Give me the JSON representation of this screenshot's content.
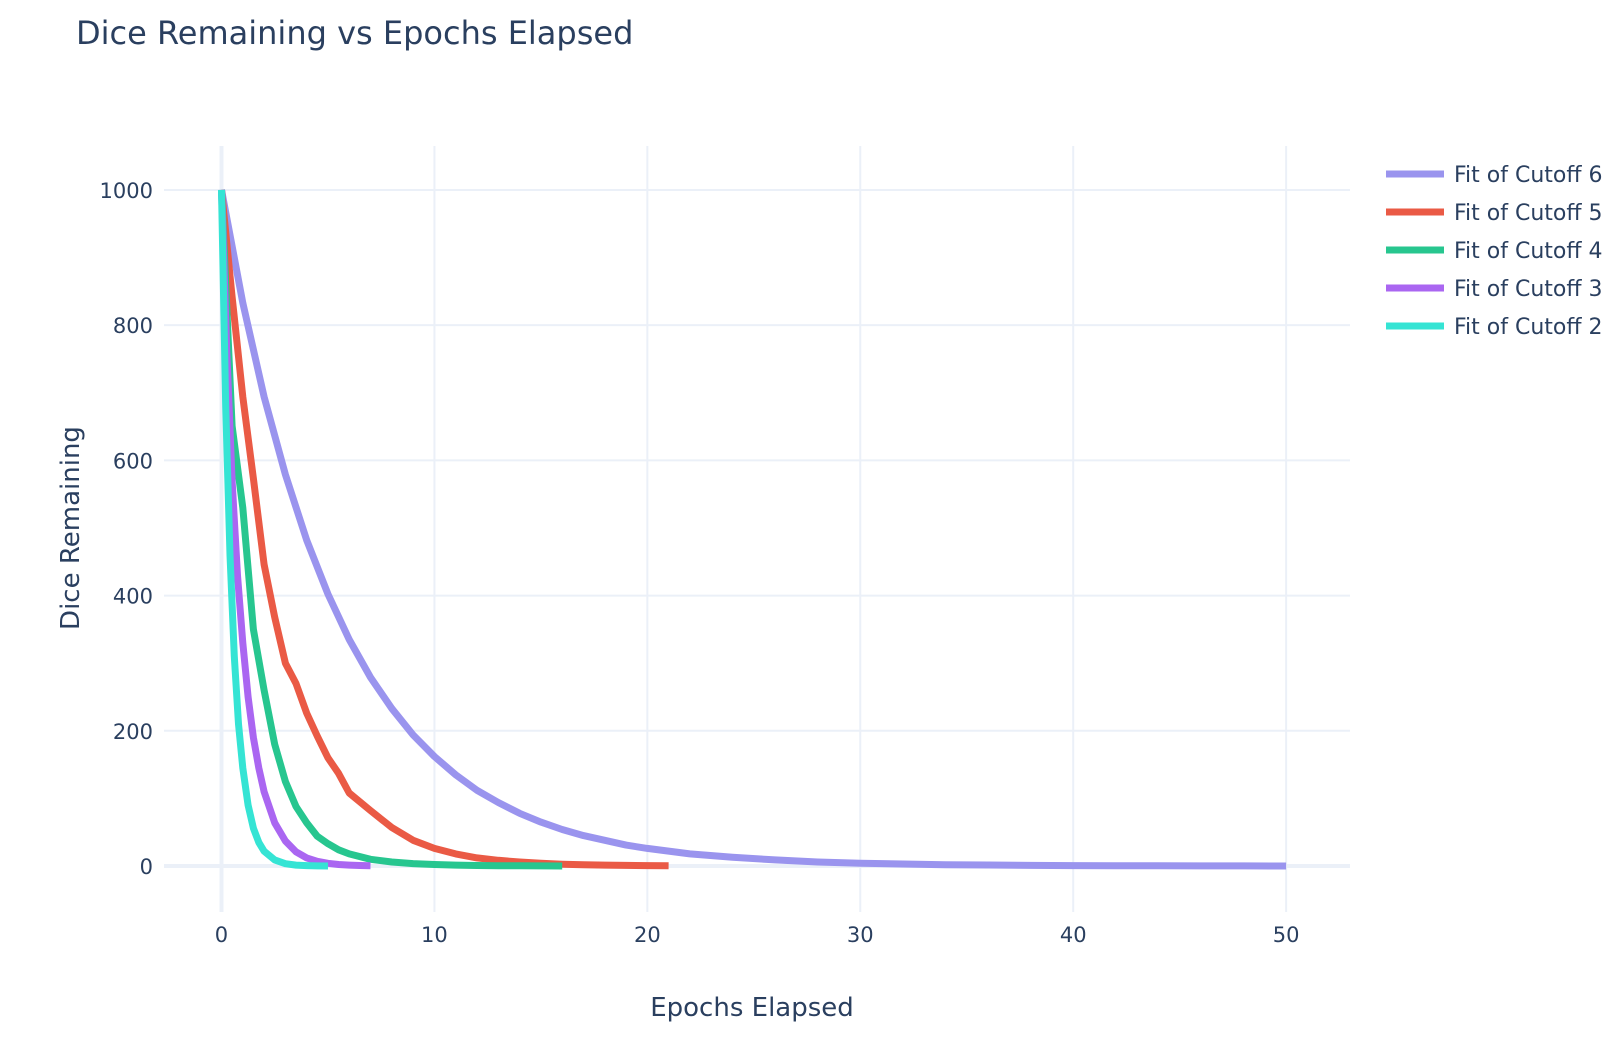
{
  "chart_data": {
    "type": "line",
    "title": "Dice Remaining vs Epochs Elapsed",
    "xlabel": "Epochs Elapsed",
    "ylabel": "Dice Remaining",
    "xlim": [
      -2.7,
      53.0
    ],
    "ylim": [
      -68,
      1065
    ],
    "x_ticks": [
      0,
      10,
      20,
      30,
      40,
      50
    ],
    "y_ticks": [
      0,
      200,
      400,
      600,
      800,
      1000
    ],
    "x_tick_labels": [
      "0",
      "10",
      "20",
      "30",
      "40",
      "50"
    ],
    "y_tick_labels": [
      "0",
      "200",
      "400",
      "600",
      "800",
      "1000"
    ],
    "grid": true,
    "legend_position": "top-right",
    "series": [
      {
        "name": "Fit of Cutoff 6",
        "color": "#9a94ee",
        "x": [
          0,
          1,
          2,
          3,
          4,
          5,
          6,
          7,
          8,
          9,
          10,
          11,
          12,
          13,
          14,
          15,
          16,
          17,
          18,
          19,
          20,
          22,
          24,
          26,
          28,
          30,
          32,
          34,
          36,
          38,
          40,
          42,
          44,
          46,
          48,
          50
        ],
        "y": [
          1000,
          833,
          694,
          579,
          482,
          402,
          335,
          279,
          233,
          194,
          162,
          135,
          112,
          94,
          78,
          65,
          54,
          45,
          38,
          31,
          26,
          18,
          13,
          9,
          6,
          4,
          3,
          2,
          1.5,
          1,
          0.7,
          0.5,
          0.3,
          0.2,
          0.15,
          0.1
        ]
      },
      {
        "name": "Fit of Cutoff 5",
        "color": "#ea5a45",
        "x": [
          0,
          0.5,
          1,
          1.5,
          2,
          2.5,
          3,
          3.5,
          4,
          4.5,
          5,
          5.5,
          6,
          7,
          8,
          9,
          10,
          11,
          12,
          13,
          14,
          15,
          16,
          17,
          18,
          19,
          20,
          21
        ],
        "y": [
          1000,
          842,
          694,
          573,
          446,
          368,
          300,
          270,
          226,
          192,
          160,
          137,
          108,
          82,
          57,
          38,
          26,
          18,
          12,
          8.5,
          6,
          4,
          2.7,
          1.9,
          1.3,
          0.9,
          0.6,
          0.4
        ]
      },
      {
        "name": "Fit of Cutoff 4",
        "color": "#27c68f",
        "x": [
          0,
          0.5,
          1,
          1.5,
          2,
          2.5,
          3,
          3.5,
          4,
          4.5,
          5,
          5.5,
          6,
          7,
          8,
          9,
          10,
          11,
          12,
          13,
          14,
          15,
          16
        ],
        "y": [
          1000,
          651,
          530,
          350,
          260,
          180,
          125,
          88,
          64,
          44,
          33,
          24,
          18,
          10,
          6,
          3.6,
          2.2,
          1.3,
          0.8,
          0.5,
          0.3,
          0.2,
          0.1
        ]
      },
      {
        "name": "Fit of Cutoff 3",
        "color": "#aa66f1",
        "x": [
          0,
          0.25,
          0.5,
          0.75,
          1,
          1.25,
          1.5,
          1.75,
          2,
          2.5,
          3,
          3.5,
          4,
          4.5,
          5,
          5.5,
          6,
          6.5,
          7
        ],
        "y": [
          1000,
          760,
          570,
          430,
          330,
          250,
          190,
          145,
          110,
          64,
          37,
          21,
          12,
          7,
          4,
          2.3,
          1.3,
          0.8,
          0.5
        ]
      },
      {
        "name": "Fit of Cutoff 2",
        "color": "#35e4d4",
        "x": [
          0,
          0.2,
          0.4,
          0.6,
          0.8,
          1,
          1.25,
          1.5,
          1.75,
          2,
          2.5,
          3,
          3.5,
          4,
          4.5,
          5
        ],
        "y": [
          1000,
          680,
          460,
          310,
          210,
          145,
          90,
          56,
          35,
          22,
          9,
          3.5,
          1.4,
          0.6,
          0.2,
          0.1
        ]
      }
    ]
  }
}
